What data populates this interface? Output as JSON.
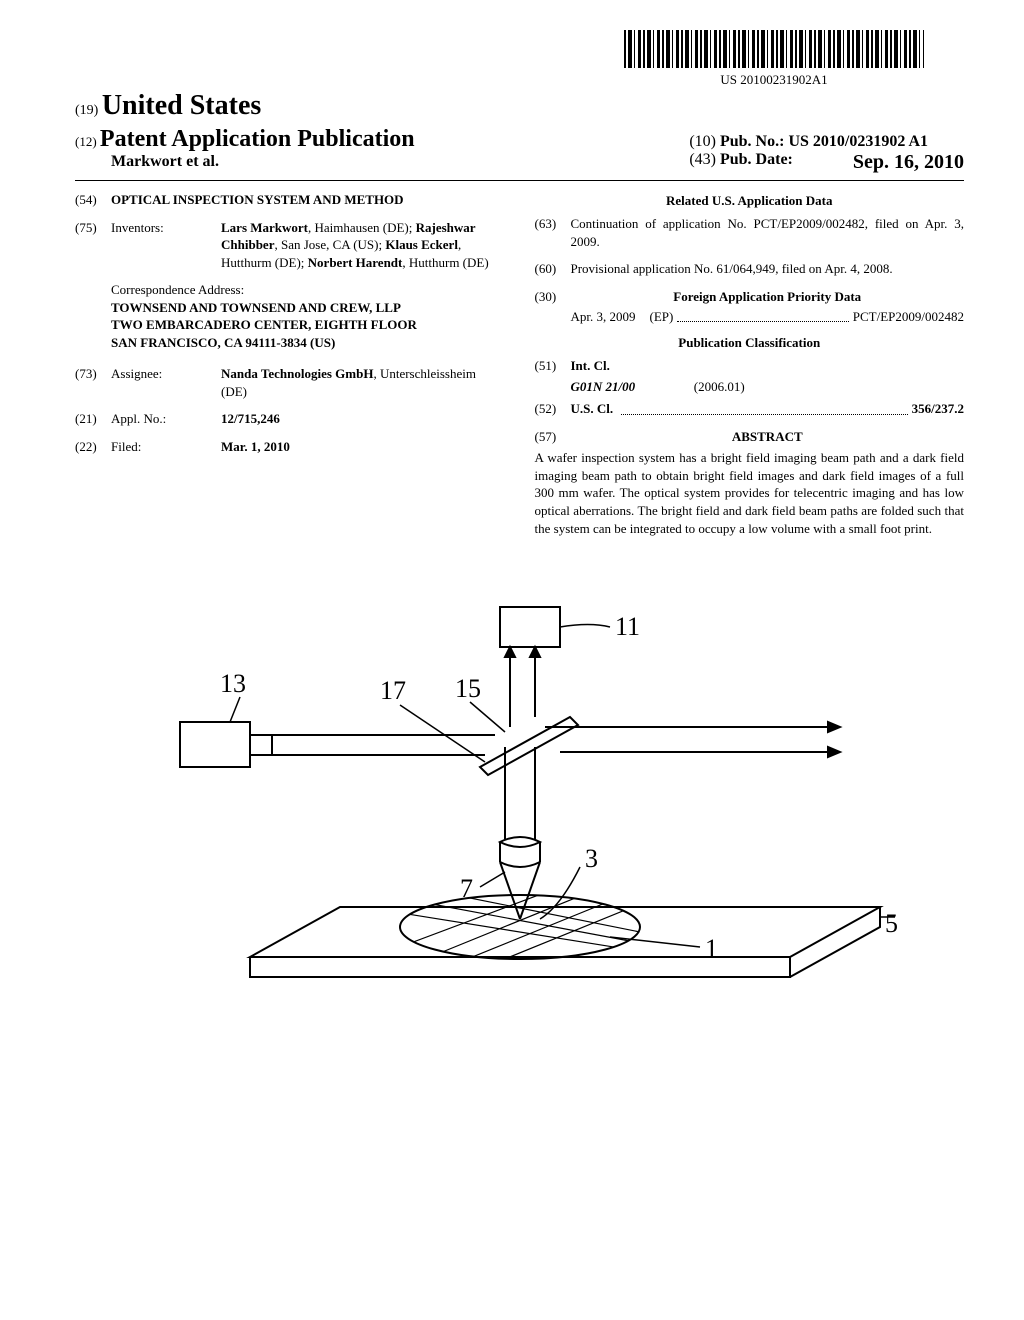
{
  "barcode_label": "US 20100231902A1",
  "header": {
    "num19": "(19)",
    "country": "United States",
    "num12": "(12)",
    "pub_type": "Patent Application Publication",
    "authors": "Markwort et al.",
    "num10": "(10)",
    "pub_no_label": "Pub. No.:",
    "pub_no": "US 2010/0231902 A1",
    "num43": "(43)",
    "pub_date_label": "Pub. Date:",
    "pub_date": "Sep. 16, 2010"
  },
  "left": {
    "f54": {
      "num": "(54)",
      "title": "OPTICAL INSPECTION SYSTEM AND METHOD"
    },
    "f75": {
      "num": "(75)",
      "label": "Inventors:",
      "text_parts": [
        {
          "b": "Lars Markwort",
          "r": ", Haimhausen (DE); "
        },
        {
          "b": "Rajeshwar Chhibber",
          "r": ", San Jose, CA (US); "
        },
        {
          "b": "Klaus Eckerl",
          "r": ", Hutthurm (DE); "
        },
        {
          "b": "Norbert Harendt",
          "r": ", Hutthurm (DE)"
        }
      ]
    },
    "corr": {
      "label": "Correspondence Address:",
      "lines": [
        "TOWNSEND AND TOWNSEND AND CREW, LLP",
        "TWO EMBARCADERO CENTER, EIGHTH FLOOR",
        "SAN FRANCISCO, CA 94111-3834 (US)"
      ]
    },
    "f73": {
      "num": "(73)",
      "label": "Assignee:",
      "name": "Nanda Technologies GmbH",
      "loc": ", Unterschleissheim (DE)"
    },
    "f21": {
      "num": "(21)",
      "label": "Appl. No.:",
      "val": "12/715,246"
    },
    "f22": {
      "num": "(22)",
      "label": "Filed:",
      "val": "Mar. 1, 2010"
    }
  },
  "right": {
    "related_heading": "Related U.S. Application Data",
    "f63": {
      "num": "(63)",
      "text": "Continuation of application No. PCT/EP2009/002482, filed on Apr. 3, 2009."
    },
    "f60": {
      "num": "(60)",
      "text": "Provisional application No. 61/064,949, filed on Apr. 4, 2008."
    },
    "f30": {
      "num": "(30)",
      "heading": "Foreign Application Priority Data"
    },
    "fpd": {
      "date": "Apr. 3, 2009",
      "cc": "(EP)",
      "appno": "PCT/EP2009/002482"
    },
    "pubclass_heading": "Publication Classification",
    "f51": {
      "num": "(51)",
      "label": "Int. Cl.",
      "code": "G01N 21/00",
      "ver": "(2006.01)"
    },
    "f52": {
      "num": "(52)",
      "label": "U.S. Cl.",
      "val": "356/237.2"
    },
    "f57": {
      "num": "(57)",
      "heading": "ABSTRACT"
    },
    "abstract": "A wafer inspection system has a bright field imaging beam path and a dark field imaging beam path to obtain bright field images and dark field images of a full 300 mm wafer. The optical system provides for telecentric imaging and has low optical aberrations. The bright field and dark field beam paths are folded such that the system can be integrated to occupy a low volume with a small foot print."
  },
  "figure": {
    "labels": {
      "l11": "11",
      "l13": "13",
      "l17": "17",
      "l15": "15",
      "l7": "7",
      "l3": "3",
      "l1": "1",
      "l5": "5"
    }
  }
}
